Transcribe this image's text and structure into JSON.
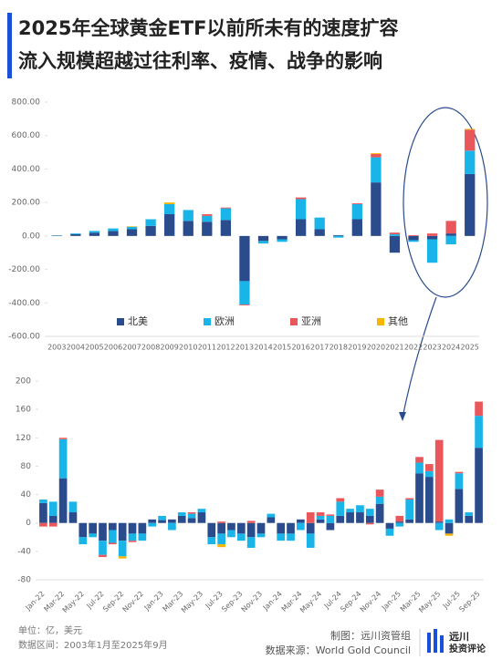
{
  "header": {
    "title_line1": "2025年全球黄金ETF以前所未有的速度扩容",
    "title_line2": "流入规模超越过往利率、疫情、战争的影响"
  },
  "chart_data": [
    {
      "type": "bar",
      "stacked": true,
      "legend": "bottom",
      "categories": [
        "2003",
        "2004",
        "2005",
        "2006",
        "2007",
        "2008",
        "2009",
        "2010",
        "2011",
        "2012",
        "2013",
        "2014",
        "2015",
        "2016",
        "2017",
        "2018",
        "2019",
        "2020",
        "2021",
        "2022",
        "2023",
        "2024",
        "2025"
      ],
      "series": [
        {
          "name": "北美",
          "color": "#2b4c8c",
          "values": [
            2,
            10,
            20,
            30,
            40,
            60,
            130,
            90,
            85,
            95,
            -270,
            -30,
            -20,
            100,
            40,
            5,
            100,
            320,
            -100,
            -25,
            -20,
            15,
            370
          ]
        },
        {
          "name": "欧洲",
          "color": "#19b4e8",
          "values": [
            2,
            5,
            10,
            15,
            15,
            40,
            60,
            65,
            35,
            70,
            -140,
            -15,
            -15,
            120,
            70,
            -10,
            90,
            150,
            10,
            -10,
            -140,
            -50,
            140
          ]
        },
        {
          "name": "亚洲",
          "color": "#e9575a",
          "values": [
            0,
            0,
            0,
            0,
            0,
            0,
            0,
            0,
            10,
            5,
            -5,
            0,
            0,
            10,
            0,
            0,
            5,
            20,
            10,
            5,
            15,
            75,
            125
          ]
        },
        {
          "name": "其他",
          "color": "#f7b500",
          "values": [
            0,
            0,
            0,
            0,
            3,
            0,
            10,
            0,
            0,
            0,
            0,
            0,
            0,
            0,
            0,
            0,
            0,
            5,
            0,
            0,
            0,
            0,
            5
          ]
        }
      ],
      "ylim": [
        -600,
        800
      ],
      "yticks": [
        {
          "value": -600,
          "label": "-600.00"
        },
        {
          "value": -400,
          "label": "-400.00"
        },
        {
          "value": -200,
          "label": "-200.00"
        },
        {
          "value": 0,
          "label": "0.00"
        },
        {
          "value": 200,
          "label": "200.00"
        },
        {
          "value": 400,
          "label": "400.00"
        },
        {
          "value": 600,
          "label": "600.00"
        },
        {
          "value": 800,
          "label": "800.00"
        }
      ]
    },
    {
      "type": "bar",
      "stacked": true,
      "categories": [
        "Jan-22",
        null,
        "Mar-22",
        null,
        "May-22",
        null,
        "Jul-22",
        null,
        "Sep-22",
        null,
        "Nov-22",
        null,
        "Jan-23",
        null,
        "Mar-23",
        null,
        "May-23",
        null,
        "Jul-23",
        null,
        "Sep-23",
        null,
        "Nov-23",
        null,
        "Jan-24",
        null,
        "Mar-24",
        null,
        "May-24",
        null,
        "Jul-24",
        null,
        "Sep-24",
        null,
        "Nov-24",
        null,
        "Jan-25",
        null,
        "Mar-25",
        null,
        "May-25",
        null,
        "Jul-25",
        null,
        "Sep-25"
      ],
      "series": [
        {
          "color": "#2b4c8c",
          "values": [
            28,
            10,
            63,
            15,
            -20,
            -15,
            -25,
            -10,
            -25,
            -15,
            -15,
            5,
            4,
            5,
            10,
            7,
            15,
            -20,
            -15,
            -10,
            -15,
            -20,
            -15,
            8,
            -15,
            -15,
            5,
            -15,
            5,
            -10,
            10,
            15,
            15,
            10,
            27,
            -8,
            2,
            5,
            70,
            65,
            2,
            -15,
            48,
            10,
            106
          ]
        },
        {
          "color": "#19b4e8",
          "values": [
            5,
            20,
            55,
            15,
            -10,
            -5,
            -20,
            -18,
            -22,
            -10,
            -10,
            -5,
            6,
            -10,
            5,
            6,
            5,
            -10,
            -15,
            -10,
            -10,
            -15,
            -5,
            5,
            -10,
            -10,
            -10,
            -20,
            5,
            10,
            20,
            5,
            10,
            10,
            10,
            -10,
            -5,
            28,
            15,
            8,
            -10,
            5,
            22,
            5,
            45
          ]
        },
        {
          "color": "#e9575a",
          "values": [
            -5,
            -5,
            2,
            0,
            0,
            0,
            -3,
            -2,
            0,
            -2,
            0,
            0,
            0,
            0,
            0,
            2,
            0,
            0,
            2,
            0,
            0,
            3,
            0,
            0,
            0,
            0,
            0,
            15,
            5,
            2,
            5,
            0,
            0,
            -2,
            10,
            0,
            8,
            2,
            8,
            10,
            115,
            0,
            2,
            0,
            20
          ]
        },
        {
          "color": "#f7b500",
          "values": [
            0,
            0,
            0,
            0,
            0,
            0,
            0,
            0,
            -3,
            0,
            0,
            0,
            0,
            0,
            0,
            0,
            0,
            0,
            -4,
            0,
            0,
            0,
            0,
            0,
            0,
            0,
            0,
            0,
            0,
            0,
            0,
            0,
            0,
            0,
            0,
            0,
            0,
            0,
            0,
            0,
            0,
            -3,
            0,
            0,
            0
          ]
        }
      ],
      "ylim": [
        -80,
        200
      ],
      "yticks": [
        -80,
        -40,
        0,
        40,
        80,
        120,
        160,
        200
      ]
    }
  ],
  "footer": {
    "unit": "单位：亿，美元",
    "range": "数据区间：2003年1月至2025年9月",
    "maker": "制图：远川资管组",
    "source": "数据来源：World Gold Council",
    "logo1": "远川",
    "logo2": "投资评论"
  }
}
